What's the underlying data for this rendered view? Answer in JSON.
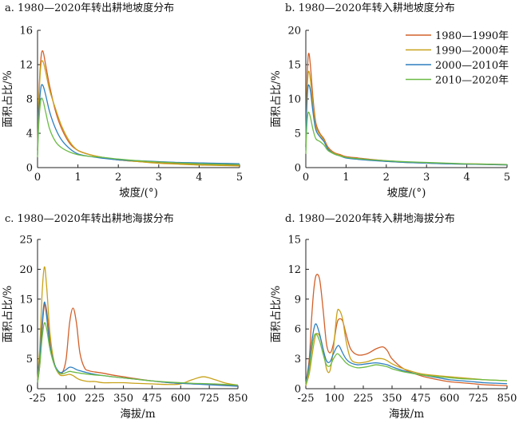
{
  "legend": [
    {
      "label": "1980—1990年",
      "color": "#d2602a"
    },
    {
      "label": "1990—2000年",
      "color": "#c8a21a"
    },
    {
      "label": "2000—2010年",
      "color": "#2d7fc1"
    },
    {
      "label": "2010—2020年",
      "color": "#6cbb45"
    }
  ],
  "chart_data": [
    {
      "type": "line",
      "title": "a. 1980—2020年转出耕地坡度分布",
      "xlabel": "坡度/(°)",
      "ylabel": "面积占比/%",
      "xlim": [
        0,
        5
      ],
      "ylim": [
        0,
        16
      ],
      "xticks": [
        "0",
        "1",
        "2",
        "3",
        "4",
        "5"
      ],
      "yticks": [
        "0",
        "4",
        "8",
        "12",
        "16"
      ],
      "grid": false,
      "series": [
        {
          "name": "1980—1990年",
          "color": "#d2602a",
          "x": [
            0,
            0.03,
            0.08,
            0.13,
            0.2,
            0.3,
            0.45,
            0.6,
            0.8,
            1.0,
            1.3,
            1.6,
            2.0,
            2.5,
            3.0,
            3.5,
            4.0,
            4.5,
            5.0
          ],
          "y": [
            2.0,
            8.0,
            12.5,
            13.6,
            12.0,
            9.5,
            6.5,
            4.5,
            2.8,
            2.0,
            1.5,
            1.2,
            0.9,
            0.7,
            0.55,
            0.45,
            0.35,
            0.3,
            0.25
          ]
        },
        {
          "name": "1990—2000年",
          "color": "#c8a21a",
          "x": [
            0,
            0.03,
            0.08,
            0.13,
            0.2,
            0.3,
            0.45,
            0.6,
            0.8,
            1.0,
            1.3,
            1.6,
            2.0,
            2.5,
            3.0,
            3.5,
            4.0,
            4.5,
            5.0
          ],
          "y": [
            2.0,
            7.5,
            11.8,
            12.4,
            11.2,
            9.0,
            6.8,
            4.8,
            3.0,
            2.0,
            1.5,
            1.2,
            0.9,
            0.7,
            0.5,
            0.4,
            0.3,
            0.25,
            0.2
          ]
        },
        {
          "name": "2000—2010年",
          "color": "#2d7fc1",
          "x": [
            0,
            0.03,
            0.08,
            0.13,
            0.2,
            0.3,
            0.45,
            0.6,
            0.8,
            1.0,
            1.3,
            1.6,
            2.0,
            2.5,
            3.0,
            3.5,
            4.0,
            4.5,
            5.0
          ],
          "y": [
            1.5,
            6.0,
            9.2,
            9.6,
            8.5,
            6.5,
            4.5,
            3.2,
            2.2,
            1.6,
            1.3,
            1.1,
            0.9,
            0.8,
            0.7,
            0.6,
            0.55,
            0.5,
            0.45
          ]
        },
        {
          "name": "2010—2020年",
          "color": "#6cbb45",
          "x": [
            0,
            0.03,
            0.08,
            0.13,
            0.2,
            0.3,
            0.45,
            0.6,
            0.8,
            1.0,
            1.3,
            1.6,
            2.0,
            2.5,
            3.0,
            3.5,
            4.0,
            4.5,
            5.0
          ],
          "y": [
            1.2,
            5.0,
            7.8,
            7.9,
            6.5,
            4.5,
            3.0,
            2.3,
            1.8,
            1.5,
            1.3,
            1.2,
            1.0,
            0.8,
            0.65,
            0.55,
            0.45,
            0.4,
            0.35
          ]
        }
      ]
    },
    {
      "type": "line",
      "title": "b. 1980—2020年转入耕地坡度分布",
      "xlabel": "坡度/(°)",
      "ylabel": "面积占比/%",
      "xlim": [
        0,
        5
      ],
      "ylim": [
        0,
        20
      ],
      "xticks": [
        "0",
        "1",
        "2",
        "3",
        "4",
        "5"
      ],
      "yticks": [
        "0",
        "5",
        "10",
        "15",
        "20"
      ],
      "grid": false,
      "series": [
        {
          "name": "1980—1990年",
          "color": "#d2602a",
          "x": [
            0,
            0.02,
            0.05,
            0.08,
            0.12,
            0.18,
            0.25,
            0.35,
            0.45,
            0.55,
            0.7,
            0.85,
            1.0,
            1.3,
            1.6,
            2.0,
            2.5,
            3.0,
            3.5,
            4.0,
            4.5,
            5.0
          ],
          "y": [
            3.0,
            10.0,
            15.5,
            16.6,
            14.5,
            10.0,
            6.5,
            5.0,
            4.2,
            3.0,
            2.2,
            1.9,
            1.6,
            1.4,
            1.2,
            1.0,
            0.8,
            0.7,
            0.6,
            0.55,
            0.5,
            0.45
          ]
        },
        {
          "name": "1990—2000年",
          "color": "#c8a21a",
          "x": [
            0,
            0.02,
            0.05,
            0.08,
            0.12,
            0.18,
            0.25,
            0.35,
            0.45,
            0.55,
            0.7,
            0.85,
            1.0,
            1.3,
            1.6,
            2.0,
            2.5,
            3.0,
            3.5,
            4.0,
            4.5,
            5.0
          ],
          "y": [
            3.0,
            9.0,
            13.2,
            14.0,
            12.5,
            9.0,
            6.0,
            4.8,
            4.0,
            2.8,
            2.1,
            1.8,
            1.5,
            1.3,
            1.1,
            0.9,
            0.75,
            0.65,
            0.55,
            0.5,
            0.45,
            0.4
          ]
        },
        {
          "name": "2000—2010年",
          "color": "#2d7fc1",
          "x": [
            0,
            0.02,
            0.05,
            0.08,
            0.12,
            0.18,
            0.25,
            0.35,
            0.45,
            0.55,
            0.7,
            0.85,
            1.0,
            1.3,
            1.6,
            2.0,
            2.5,
            3.0,
            3.5,
            4.0,
            4.5,
            5.0
          ],
          "y": [
            2.5,
            8.0,
            11.5,
            12.0,
            11.0,
            8.0,
            5.5,
            4.5,
            3.8,
            2.7,
            2.0,
            1.7,
            1.4,
            1.2,
            1.05,
            0.9,
            0.75,
            0.65,
            0.55,
            0.5,
            0.45,
            0.4
          ]
        },
        {
          "name": "2010—2020年",
          "color": "#6cbb45",
          "x": [
            0,
            0.02,
            0.05,
            0.08,
            0.12,
            0.18,
            0.25,
            0.35,
            0.45,
            0.55,
            0.7,
            0.85,
            1.0,
            1.3,
            1.6,
            2.0,
            2.5,
            3.0,
            3.5,
            4.0,
            4.5,
            5.0
          ],
          "y": [
            2.0,
            5.5,
            7.8,
            8.0,
            7.2,
            5.5,
            4.2,
            3.8,
            3.3,
            2.5,
            2.0,
            1.7,
            1.5,
            1.3,
            1.15,
            1.0,
            0.85,
            0.75,
            0.65,
            0.55,
            0.5,
            0.45
          ]
        }
      ]
    },
    {
      "type": "line",
      "title": "c. 1980—2020年转出耕地海拔分布",
      "xlabel": "海拔/m",
      "ylabel": "面积占比/%",
      "xlim": [
        -25,
        850
      ],
      "ylim": [
        0,
        25
      ],
      "xticks": [
        "-25",
        "100",
        "225",
        "350",
        "475",
        "600",
        "725",
        "850"
      ],
      "yticks": [
        "0",
        "5",
        "10",
        "15",
        "20",
        "25"
      ],
      "grid": false,
      "series": [
        {
          "name": "1980—1990年",
          "color": "#d2602a",
          "x": [
            -25,
            -15,
            -5,
            5,
            15,
            30,
            50,
            70,
            85,
            100,
            115,
            130,
            145,
            160,
            180,
            200,
            225,
            260,
            300,
            350,
            400,
            475,
            550,
            600,
            650,
            700,
            750,
            800,
            850
          ],
          "y": [
            1.0,
            4.0,
            10.0,
            14.0,
            13.0,
            8.0,
            4.0,
            2.6,
            2.8,
            5.0,
            11.0,
            13.5,
            11.0,
            6.0,
            3.5,
            3.0,
            2.8,
            2.6,
            2.3,
            2.0,
            1.7,
            1.3,
            1.0,
            0.9,
            0.8,
            0.75,
            0.7,
            0.6,
            0.5
          ]
        },
        {
          "name": "1990—2000年",
          "color": "#c8a21a",
          "x": [
            -25,
            -15,
            -5,
            5,
            15,
            30,
            50,
            70,
            85,
            100,
            115,
            130,
            145,
            160,
            180,
            200,
            225,
            260,
            300,
            350,
            400,
            475,
            550,
            600,
            650,
            700,
            750,
            800,
            850
          ],
          "y": [
            1.5,
            7.0,
            16.0,
            20.4,
            17.0,
            9.0,
            4.0,
            2.4,
            2.2,
            2.3,
            2.4,
            2.2,
            1.8,
            1.5,
            1.3,
            1.2,
            1.2,
            1.0,
            1.0,
            1.0,
            0.9,
            0.8,
            0.7,
            0.8,
            1.5,
            2.0,
            1.5,
            0.9,
            0.6
          ]
        },
        {
          "name": "2000—2010年",
          "color": "#2d7fc1",
          "x": [
            -25,
            -15,
            -5,
            5,
            15,
            30,
            50,
            70,
            85,
            100,
            115,
            130,
            145,
            160,
            180,
            200,
            225,
            260,
            300,
            350,
            400,
            475,
            550,
            600,
            650,
            700,
            750,
            800,
            850
          ],
          "y": [
            1.0,
            5.0,
            11.0,
            14.5,
            12.0,
            7.0,
            4.0,
            2.8,
            2.8,
            3.2,
            3.6,
            3.5,
            3.2,
            3.0,
            2.8,
            2.6,
            2.4,
            2.2,
            2.0,
            1.8,
            1.6,
            1.3,
            1.0,
            0.9,
            0.8,
            0.7,
            0.6,
            0.5,
            0.4
          ]
        },
        {
          "name": "2010—2020年",
          "color": "#6cbb45",
          "x": [
            -25,
            -15,
            -5,
            5,
            15,
            30,
            50,
            70,
            85,
            100,
            115,
            130,
            145,
            160,
            180,
            200,
            225,
            260,
            300,
            350,
            400,
            475,
            550,
            600,
            650,
            700,
            750,
            800,
            850
          ],
          "y": [
            1.0,
            4.0,
            8.5,
            11.0,
            10.0,
            6.5,
            3.8,
            2.6,
            2.5,
            2.7,
            2.9,
            2.8,
            2.7,
            2.6,
            2.5,
            2.4,
            2.3,
            2.2,
            2.0,
            1.8,
            1.6,
            1.3,
            1.1,
            1.0,
            0.9,
            0.85,
            0.8,
            0.7,
            0.6
          ]
        }
      ]
    },
    {
      "type": "line",
      "title": "d. 1980—2020年转入耕地海拔分布",
      "xlabel": "海拔/m",
      "ylabel": "面积占比/%",
      "xlim": [
        -25,
        850
      ],
      "ylim": [
        0,
        15
      ],
      "xticks": [
        "-25",
        "100",
        "225",
        "350",
        "475",
        "600",
        "725",
        "850"
      ],
      "yticks": [
        "0",
        "3",
        "6",
        "9",
        "12",
        "15"
      ],
      "grid": false,
      "series": [
        {
          "name": "1980—1990年",
          "color": "#d2602a",
          "x": [
            -25,
            -10,
            0,
            10,
            20,
            35,
            50,
            65,
            80,
            95,
            110,
            120,
            135,
            150,
            170,
            200,
            240,
            280,
            310,
            330,
            350,
            400,
            475,
            550,
            600,
            650,
            700,
            750,
            800,
            850
          ],
          "y": [
            0.5,
            3.0,
            7.0,
            10.0,
            11.4,
            11.0,
            8.0,
            4.5,
            3.6,
            4.5,
            6.5,
            7.0,
            6.8,
            5.5,
            4.0,
            3.4,
            3.5,
            4.0,
            4.2,
            3.8,
            3.0,
            2.0,
            1.3,
            0.9,
            0.7,
            0.6,
            0.5,
            0.4,
            0.35,
            0.3
          ]
        },
        {
          "name": "1990—2000年",
          "color": "#c8a21a",
          "x": [
            -25,
            -10,
            0,
            10,
            20,
            35,
            50,
            65,
            80,
            95,
            110,
            120,
            135,
            150,
            170,
            200,
            240,
            280,
            310,
            330,
            350,
            400,
            475,
            550,
            600,
            650,
            700,
            750,
            800,
            850
          ],
          "y": [
            0.3,
            1.5,
            3.0,
            4.5,
            5.5,
            5.3,
            4.0,
            2.0,
            1.8,
            4.0,
            7.5,
            7.9,
            7.0,
            4.8,
            3.0,
            2.6,
            2.7,
            3.0,
            3.0,
            2.8,
            2.5,
            2.0,
            1.5,
            1.3,
            1.2,
            1.1,
            1.0,
            0.9,
            0.85,
            0.8
          ]
        },
        {
          "name": "2000—2010年",
          "color": "#2d7fc1",
          "x": [
            -25,
            -10,
            0,
            10,
            20,
            35,
            50,
            65,
            80,
            95,
            110,
            120,
            135,
            150,
            170,
            200,
            240,
            280,
            310,
            330,
            350,
            400,
            475,
            550,
            600,
            650,
            700,
            750,
            800,
            850
          ],
          "y": [
            0.5,
            2.5,
            4.5,
            6.0,
            6.5,
            5.5,
            4.0,
            2.8,
            2.7,
            3.5,
            4.2,
            4.3,
            3.6,
            3.0,
            2.6,
            2.4,
            2.5,
            2.6,
            2.5,
            2.4,
            2.2,
            1.8,
            1.4,
            1.1,
            0.9,
            0.8,
            0.7,
            0.6,
            0.55,
            0.5
          ]
        },
        {
          "name": "2010—2020年",
          "color": "#6cbb45",
          "x": [
            -25,
            -10,
            0,
            10,
            20,
            35,
            50,
            65,
            80,
            95,
            110,
            120,
            135,
            150,
            170,
            200,
            240,
            280,
            310,
            330,
            350,
            400,
            475,
            550,
            600,
            650,
            700,
            750,
            800,
            850
          ],
          "y": [
            0.4,
            2.0,
            3.8,
            5.2,
            5.5,
            4.8,
            3.5,
            2.4,
            2.3,
            3.0,
            3.5,
            3.4,
            3.0,
            2.6,
            2.3,
            2.1,
            2.2,
            2.4,
            2.3,
            2.2,
            2.0,
            1.7,
            1.4,
            1.2,
            1.1,
            1.0,
            0.95,
            0.9,
            0.85,
            0.8
          ]
        }
      ]
    }
  ]
}
